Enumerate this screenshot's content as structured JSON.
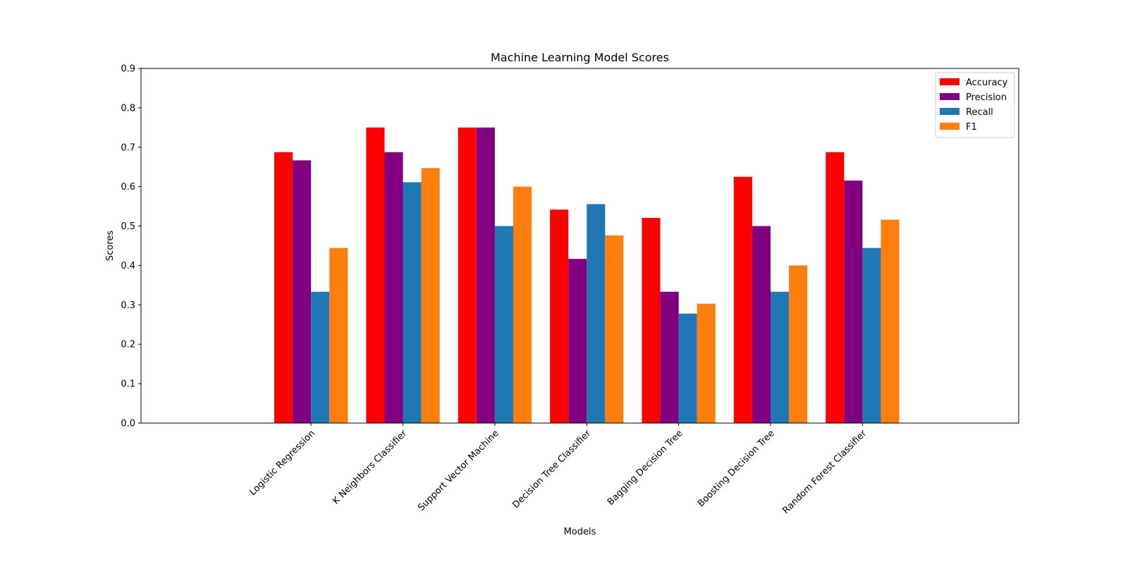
{
  "chart_data": {
    "type": "bar",
    "title": "Machine Learning Model Scores",
    "xlabel": "Models",
    "ylabel": "Scores",
    "ylim": [
      0,
      0.9
    ],
    "yticks": [
      "0.0",
      "0.1",
      "0.2",
      "0.3",
      "0.4",
      "0.5",
      "0.6",
      "0.7",
      "0.8",
      "0.9"
    ],
    "categories": [
      "Logistic Regression",
      "K Neighbors Classifier",
      "Support Vector Machine",
      "Decision Tree Classifier",
      "Bagging Decision Tree",
      "Boosting Decision Tree",
      "Random Forest Classifier"
    ],
    "series": [
      {
        "name": "Accuracy",
        "color": "#ff0000",
        "values": [
          0.6875,
          0.75,
          0.75,
          0.5417,
          0.5208,
          0.625,
          0.6875
        ]
      },
      {
        "name": "Precision",
        "color": "#800080",
        "values": [
          0.6667,
          0.6875,
          0.75,
          0.4167,
          0.3333,
          0.5,
          0.6154
        ]
      },
      {
        "name": "Recall",
        "color": "#1f77b4",
        "values": [
          0.3333,
          0.6111,
          0.5,
          0.5556,
          0.2778,
          0.3333,
          0.4444
        ]
      },
      {
        "name": "F1",
        "color": "#ff7f0e",
        "values": [
          0.4444,
          0.6471,
          0.6,
          0.4762,
          0.303,
          0.4,
          0.5161
        ]
      }
    ],
    "grid": false,
    "legend_position": "top-right"
  }
}
